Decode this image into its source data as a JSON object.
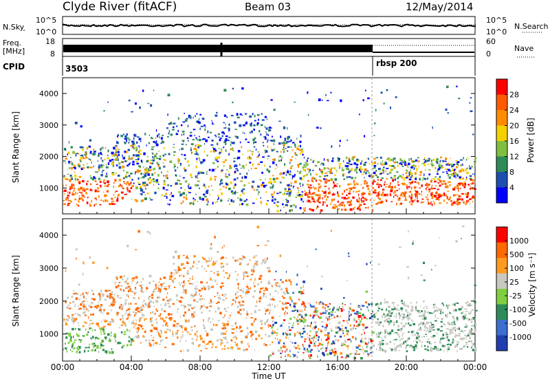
{
  "header": {
    "station": "Clyde River (fitACF)",
    "beam": "Beam 03",
    "date": "12/May/2014"
  },
  "strips": {
    "nsky_label": "N.Sky",
    "nsky_ticks": [
      "10^5",
      "10^0"
    ],
    "nsearch_label": "N.Search",
    "nsearch_ticks": [
      "10^5",
      "10^0"
    ],
    "freq_label_line1": "Freq.",
    "freq_label_line2": "[MHz]",
    "freq_ticks": [
      "18",
      "8"
    ],
    "nave_label": "Nave",
    "nave_ticks": [
      "60",
      "0"
    ],
    "cpid_label": "CPID",
    "cpid_values": [
      "3503",
      "rbsp 200"
    ]
  },
  "chart_data": [
    {
      "type": "heatmap",
      "name": "power-panel",
      "xlabel": "Time UT",
      "ylabel": "Slant Range [km]",
      "x_range": [
        "00:00",
        "24:00"
      ],
      "x_ticks": [
        "00:00",
        "04:00",
        "08:00",
        "12:00",
        "16:00",
        "20:00",
        "00:00"
      ],
      "ylim": [
        180,
        4500
      ],
      "y_ticks": [
        1000,
        2000,
        3000,
        4000
      ],
      "colorbar": {
        "label": "Power [dB]",
        "ticks": [
          "28",
          "24",
          "20",
          "16",
          "12",
          "8",
          "4"
        ],
        "colors": [
          "#0000ff",
          "#1e4fb0",
          "#2e8b57",
          "#7fbf3f",
          "#f5d000",
          "#ff8c00",
          "#ff5a00",
          "#ff0000"
        ]
      },
      "bands": [
        {
          "t0": 0.0,
          "t1": 3.0,
          "r0": 450,
          "r1": 1200,
          "power": "high"
        },
        {
          "t0": 0.0,
          "t1": 6.0,
          "r0": 1200,
          "r1": 2300,
          "power": "mid"
        },
        {
          "t0": 5.0,
          "t1": 12.0,
          "r0": 1800,
          "r1": 3200,
          "power": "mid-low"
        },
        {
          "t0": 14.0,
          "t1": 18.0,
          "r0": 400,
          "r1": 1300,
          "power": "high"
        },
        {
          "t0": 18.0,
          "t1": 24.0,
          "r0": 700,
          "r1": 1800,
          "power": "high"
        }
      ]
    },
    {
      "type": "heatmap",
      "name": "velocity-panel",
      "xlabel": "Time UT",
      "ylabel": "Slant Range [km]",
      "x_range": [
        "00:00",
        "24:00"
      ],
      "x_ticks": [
        "00:00",
        "04:00",
        "08:00",
        "12:00",
        "16:00",
        "20:00",
        "00:00"
      ],
      "ylim": [
        180,
        4500
      ],
      "y_ticks": [
        1000,
        2000,
        3000,
        4000
      ],
      "colorbar": {
        "label": "Velocity [m s⁻¹]",
        "ticks": [
          "1000",
          "500",
          "100",
          "25",
          "-25",
          "-100",
          "-500",
          "-1000"
        ],
        "colors": [
          "#1f3fb0",
          "#3b6fd0",
          "#2e8b57",
          "#7fcf3f",
          "#c8c8c0",
          "#ff9a20",
          "#ff6a00",
          "#ff0000"
        ]
      }
    }
  ]
}
